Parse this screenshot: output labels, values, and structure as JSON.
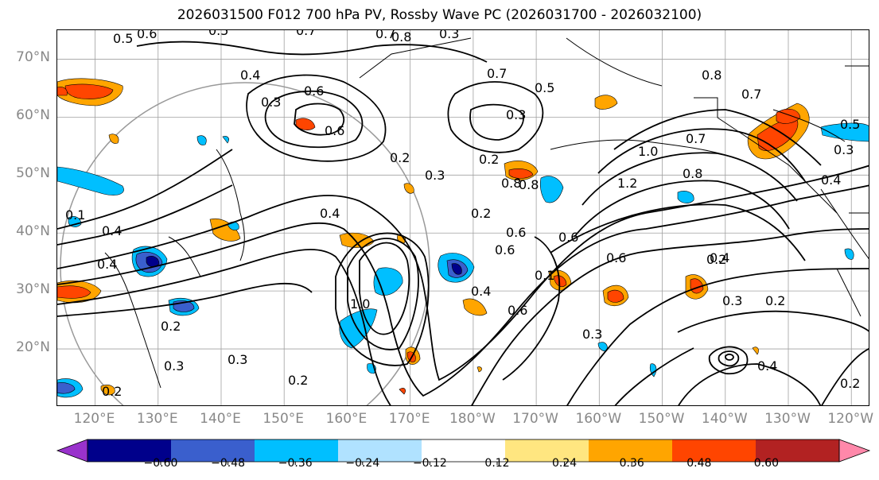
{
  "title": "2026031500 F012 700 hPa PV, Rossby Wave PC (2026031700 - 2026032100)",
  "lat_labels": [
    {
      "text": "70°N",
      "lat": 70
    },
    {
      "text": "60°N",
      "lat": 60
    },
    {
      "text": "50°N",
      "lat": 50
    },
    {
      "text": "40°N",
      "lat": 40
    },
    {
      "text": "30°N",
      "lat": 30
    },
    {
      "text": "20°N",
      "lat": 20
    }
  ],
  "lon_labels": [
    {
      "text": "120°E",
      "lon": 120
    },
    {
      "text": "130°E",
      "lon": 130
    },
    {
      "text": "140°E",
      "lon": 140
    },
    {
      "text": "150°E",
      "lon": 150
    },
    {
      "text": "160°E",
      "lon": 160
    },
    {
      "text": "170°E",
      "lon": 170
    },
    {
      "text": "180°W",
      "lon": 180
    },
    {
      "text": "170°W",
      "lon": 190
    },
    {
      "text": "160°W",
      "lon": 200
    },
    {
      "text": "150°W",
      "lon": 210
    },
    {
      "text": "140°W",
      "lon": 220
    },
    {
      "text": "130°W",
      "lon": 230
    },
    {
      "text": "120°W",
      "lon": 240
    }
  ],
  "map_extent": {
    "lon_min": 114,
    "lon_max": 243,
    "lat_min": 10,
    "lat_max": 75
  },
  "colorbar": {
    "ticks": [
      "−0.60",
      "−0.48",
      "−0.36",
      "−0.24",
      "−0.12",
      "0.12",
      "0.24",
      "0.36",
      "0.48",
      "0.60"
    ],
    "colors": [
      "#9932cc",
      "#00008b",
      "#3a5fcd",
      "#00bfff",
      "#b0e2ff",
      "#ffffff",
      "#ffe680",
      "#ffa500",
      "#ff4500",
      "#b22222",
      "#ff88aa"
    ]
  },
  "contour_labels": [
    "0.5",
    "0.6",
    "0.5",
    "0.7",
    "0.8",
    "0.3",
    "0.7",
    "0.4",
    "0.3",
    "0.6",
    "0.6",
    "0.7",
    "0.2",
    "0.3",
    "1.0",
    "0.8",
    "1.2",
    "0.7",
    "0.4",
    "0.6",
    "0.8",
    "0.5",
    "0.3",
    "0.4",
    "0.7",
    "0.5",
    "0.3",
    "0.2",
    "0.2",
    "0.4",
    "0.4",
    "0.4",
    "0.6",
    "0.6",
    "0.2",
    "0.2",
    "0.3",
    "0.2",
    "0.3",
    "0.2",
    "0.2",
    "0.6",
    "1.0",
    "0.4",
    "0.1",
    "0.2",
    "0.3",
    "0.4",
    "0.1",
    "0.8",
    "0.6",
    "0.3",
    "0.8"
  ]
}
